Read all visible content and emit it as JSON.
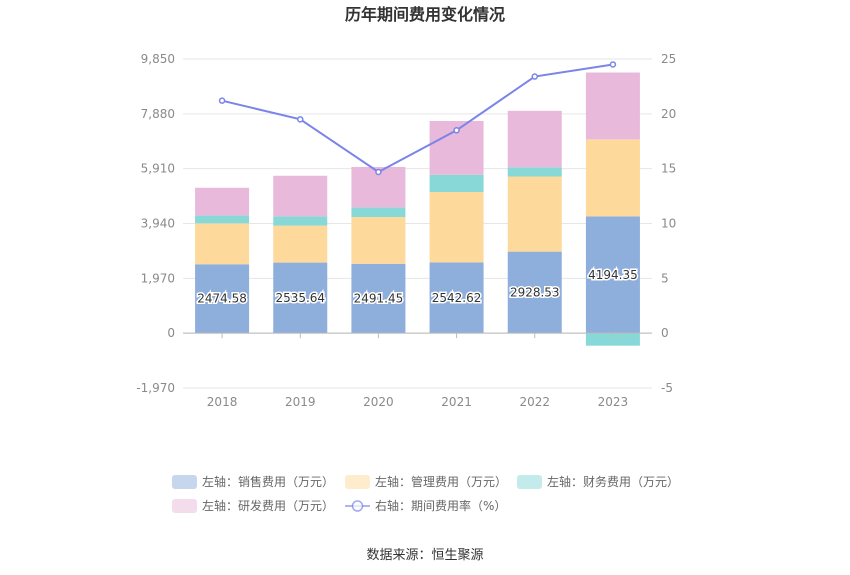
{
  "title": "历年期间费用变化情况",
  "source": "数据来源：恒生聚源",
  "chart_data": {
    "type": "bar",
    "stacked": true,
    "categories": [
      "2018",
      "2019",
      "2020",
      "2021",
      "2022",
      "2023"
    ],
    "left_axis": {
      "ticks": [
        -1970,
        0,
        1970,
        3940,
        5910,
        7880,
        9850
      ],
      "tick_labels": [
        "-1,970",
        "0",
        "1,970",
        "3,940",
        "5,910",
        "7,880",
        "9,850"
      ],
      "ylim": [
        -1970,
        9850
      ]
    },
    "right_axis": {
      "ticks": [
        -5,
        0,
        5,
        10,
        15,
        20,
        25
      ],
      "tick_labels": [
        "-5",
        "0",
        "5",
        "10",
        "15",
        "20",
        "25"
      ],
      "ylim": [
        -5,
        25
      ]
    },
    "series": [
      {
        "name": "左轴：销售费用（万元）",
        "color": "#8eaedc",
        "values": [
          2474.58,
          2535.64,
          2491.45,
          2542.62,
          2928.53,
          4194.35
        ],
        "labels": [
          "2474.58",
          "2535.64",
          "2491.45",
          "2542.62",
          "2928.53",
          "4194.35"
        ]
      },
      {
        "name": "左轴：管理费用（万元）",
        "color": "#fdd99b",
        "values": [
          1470,
          1330,
          1680,
          2530,
          2700,
          2770
        ]
      },
      {
        "name": "左轴：财务费用（万元）",
        "color": "#88d8d8",
        "values": [
          280,
          330,
          340,
          620,
          330,
          -450
        ]
      },
      {
        "name": "左轴：研发费用（万元）",
        "color": "#e8b9da",
        "values": [
          1000,
          1460,
          1460,
          1930,
          2030,
          2400
        ]
      }
    ],
    "line_series": {
      "name": "右轴：期间费用率（%）",
      "color": "#7b84e8",
      "values": [
        21.2,
        19.5,
        14.7,
        18.5,
        23.4,
        24.5
      ]
    }
  }
}
